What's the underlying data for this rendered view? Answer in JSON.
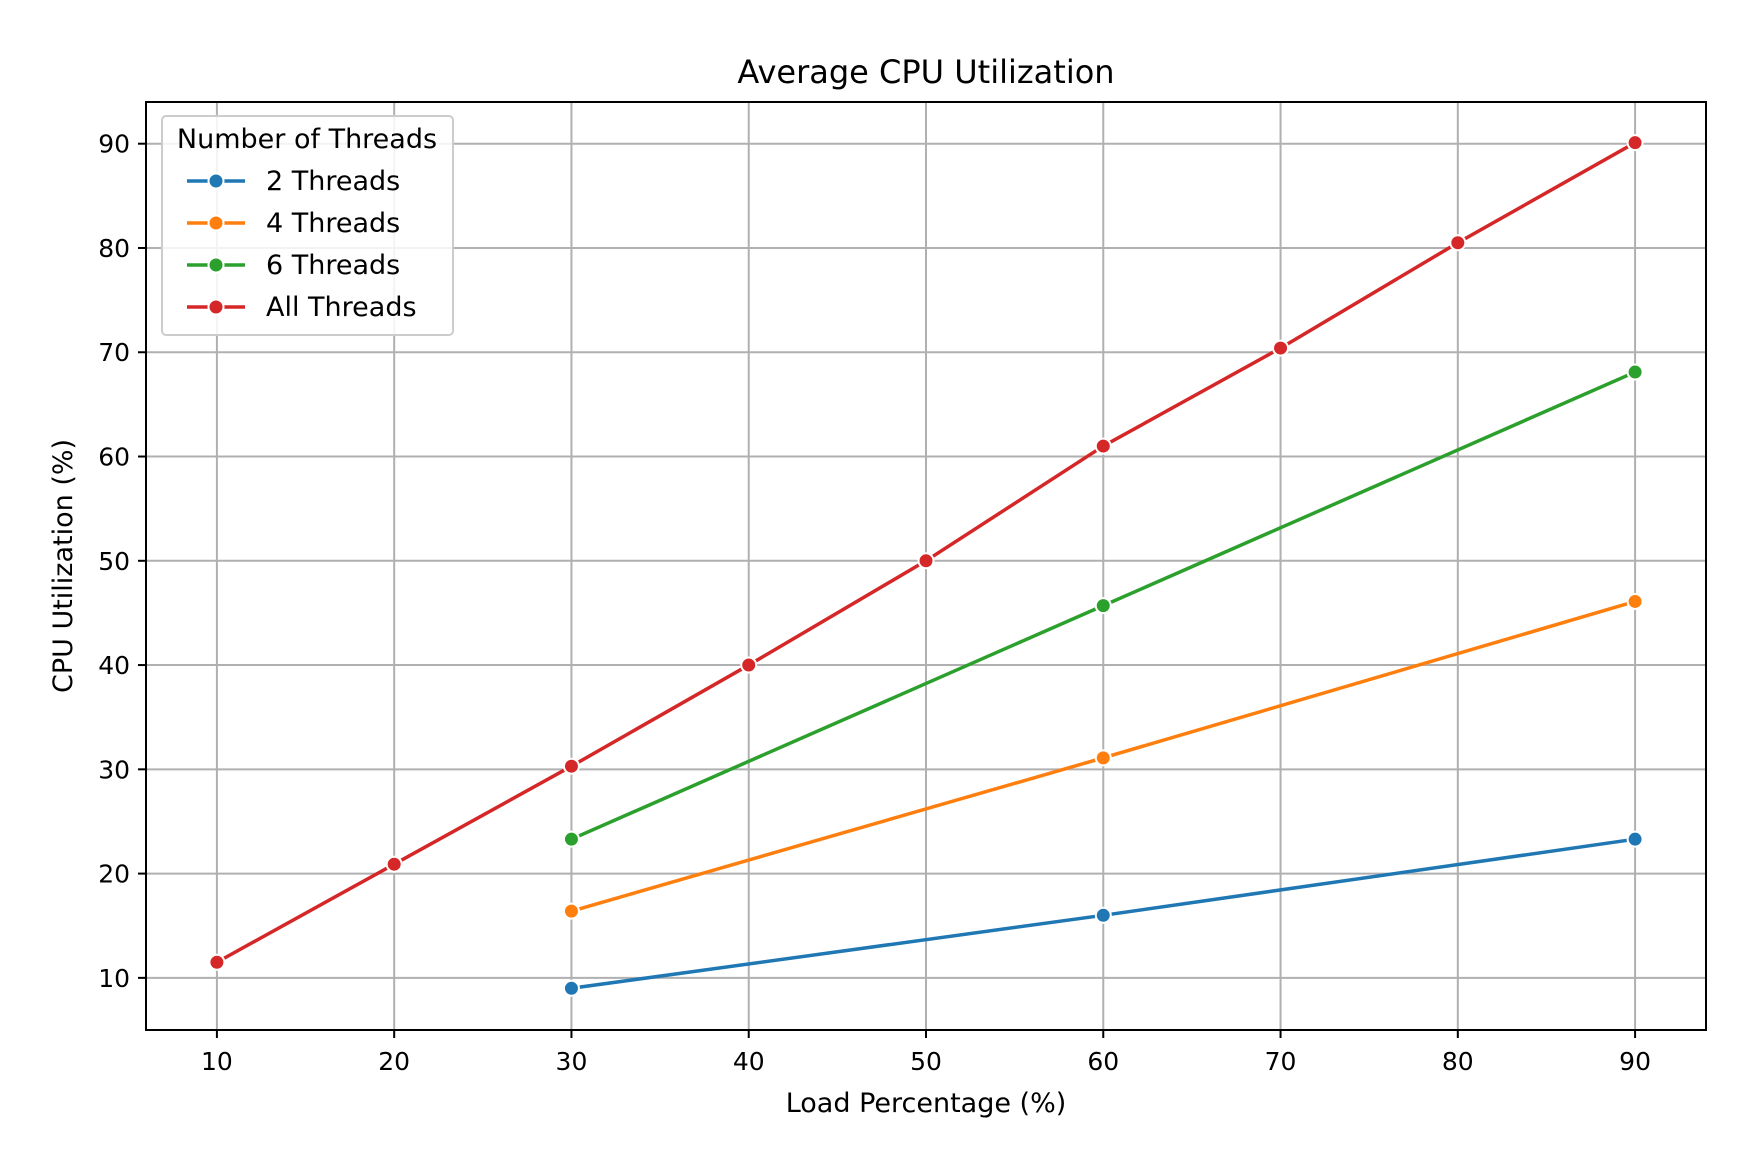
{
  "chart_data": {
    "type": "line",
    "title": "Average CPU Utilization",
    "xlabel": "Load Percentage (%)",
    "ylabel": "CPU Utilization (%)",
    "xlim": [
      6,
      94
    ],
    "ylim": [
      5,
      94
    ],
    "x_ticks": [
      10,
      20,
      30,
      40,
      50,
      60,
      70,
      80,
      90
    ],
    "y_ticks": [
      10,
      20,
      30,
      40,
      50,
      60,
      70,
      80,
      90
    ],
    "grid": true,
    "legend": {
      "title": "Number of Threads",
      "placement": "top-left"
    },
    "series": [
      {
        "name": "2 Threads",
        "color": "#1f77b4",
        "x": [
          30,
          60,
          90
        ],
        "y": [
          9.0,
          16.0,
          23.3
        ]
      },
      {
        "name": "4 Threads",
        "color": "#ff7f0e",
        "x": [
          30,
          60,
          90
        ],
        "y": [
          16.4,
          31.1,
          46.1
        ]
      },
      {
        "name": "6 Threads",
        "color": "#2ca02c",
        "x": [
          30,
          60,
          90
        ],
        "y": [
          23.3,
          45.7,
          68.1
        ]
      },
      {
        "name": "All Threads",
        "color": "#d62728",
        "x": [
          10,
          20,
          30,
          40,
          50,
          60,
          70,
          80,
          90
        ],
        "y": [
          11.5,
          20.9,
          30.3,
          40.0,
          50.0,
          61.0,
          70.4,
          80.5,
          90.1
        ]
      }
    ]
  }
}
